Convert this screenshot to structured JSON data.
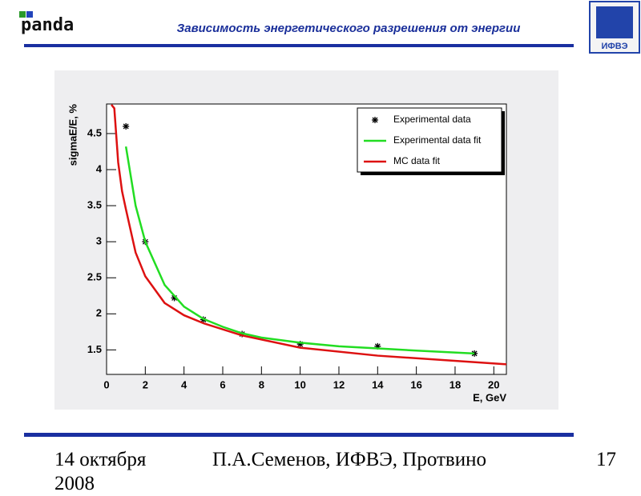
{
  "header": {
    "title": "Зависимость энергетического разрешения от энергии",
    "logo_left": "panda",
    "logo_right": "ИФВЭ"
  },
  "chart_data": {
    "type": "line",
    "xlabel": "E, GeV",
    "ylabel": "sigmaE/E, %",
    "xlim": [
      0,
      20.65
    ],
    "ylim": [
      1.16,
      4.91
    ],
    "xticks": [
      0,
      2,
      4,
      6,
      8,
      10,
      12,
      14,
      16,
      18,
      20
    ],
    "yticks": [
      1.5,
      2,
      2.5,
      3,
      3.5,
      4,
      4.5
    ],
    "legend": "upper right",
    "series": [
      {
        "name": "Experimental data",
        "type": "scatter",
        "color": "#000000",
        "x": [
          1,
          2,
          3.5,
          5,
          7,
          10,
          14,
          19
        ],
        "values": [
          4.6,
          3.0,
          2.22,
          1.92,
          1.72,
          1.58,
          1.55,
          1.45
        ]
      },
      {
        "name": "Experimental data fit",
        "type": "line",
        "color": "#22dd22",
        "x": [
          1,
          1.5,
          2,
          3,
          4,
          5,
          6,
          7,
          8,
          10,
          12,
          14,
          16,
          19
        ],
        "values": [
          4.32,
          3.5,
          3.0,
          2.4,
          2.1,
          1.93,
          1.82,
          1.73,
          1.67,
          1.6,
          1.55,
          1.52,
          1.49,
          1.45
        ]
      },
      {
        "name": "MC data fit",
        "type": "line",
        "color": "#dd1111",
        "x": [
          0.25,
          0.4,
          0.6,
          0.8,
          1,
          1.5,
          2,
          3,
          4,
          5,
          7,
          10,
          14,
          20.65
        ],
        "values": [
          4.9,
          4.85,
          4.1,
          3.7,
          3.45,
          2.85,
          2.52,
          2.15,
          1.98,
          1.87,
          1.7,
          1.53,
          1.42,
          1.3
        ]
      }
    ]
  },
  "footer": {
    "date": "14 октября 2008",
    "author": "П.А.Семенов, ИФВЭ, Протвино",
    "page": "17"
  }
}
